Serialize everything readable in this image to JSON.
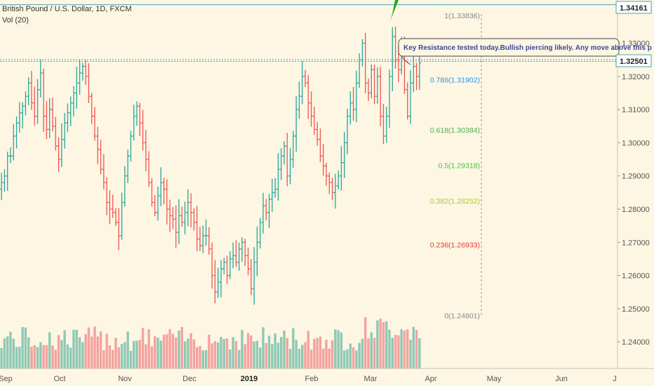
{
  "header": {
    "symbol_line": "British Pound / U.S. Dollar, 1D, FXCM",
    "volume_label": "Vol (20)"
  },
  "annotation": {
    "text": "Key Resistance tested today.Bullish piercing likely. Any move above this p"
  },
  "price_tags": {
    "upper": "1.34161",
    "current": "1.32501"
  },
  "colors": {
    "background": "#fdf6e3",
    "up": "#26a69a",
    "down": "#ef5350",
    "vol_up": "#8fc9b5",
    "vol_down": "#f4a3a0",
    "axis_text": "#555555",
    "price_line": "#4aa3b5"
  },
  "chart_data": {
    "type": "ohlc",
    "symbol": "GBP/USD",
    "timeframe": "1D",
    "ylim": [
      1.232,
      1.343
    ],
    "y_ticks": [
      "1.33000",
      "1.32000",
      "1.31000",
      "1.30000",
      "1.29000",
      "1.28000",
      "1.27000",
      "1.26000",
      "1.25000",
      "1.24000"
    ],
    "x_ticks": [
      "Sep",
      "Oct",
      "Nov",
      "Dec",
      "2019",
      "Feb",
      "Mar",
      "Apr",
      "May",
      "Jun",
      "J"
    ],
    "horizontal_levels": [
      1.34161,
      1.32501
    ],
    "fibonacci": [
      {
        "label": "1(1.33836)",
        "value": 1.33836,
        "color": "#888888"
      },
      {
        "label": "0.786(1.31902)",
        "value": 1.31902,
        "color": "#2196f3"
      },
      {
        "label": "0.618(1.30384)",
        "value": 1.30384,
        "color": "#4caf50"
      },
      {
        "label": "0.5(1.29318)",
        "value": 1.29318,
        "color": "#43c643"
      },
      {
        "label": "0.382(1.28252)",
        "value": 1.28252,
        "color": "#a8c93a"
      },
      {
        "label": "0.236(1.26933)",
        "value": 1.26933,
        "color": "#e53935"
      },
      {
        "label": "0(1.24801)",
        "value": 1.24801,
        "color": "#888888"
      }
    ],
    "close_path": [
      1.288,
      1.29,
      1.296,
      1.296,
      1.302,
      1.306,
      1.309,
      1.311,
      1.314,
      1.318,
      1.312,
      1.308,
      1.316,
      1.321,
      1.308,
      1.304,
      1.31,
      1.305,
      1.299,
      1.295,
      1.301,
      1.306,
      1.309,
      1.312,
      1.315,
      1.318,
      1.321,
      1.323,
      1.32,
      1.314,
      1.308,
      1.302,
      1.298,
      1.292,
      1.288,
      1.282,
      1.28,
      1.279,
      1.276,
      1.272,
      1.282,
      1.29,
      1.296,
      1.302,
      1.308,
      1.311,
      1.306,
      1.3,
      1.295,
      1.288,
      1.282,
      1.279,
      1.284,
      1.288,
      1.286,
      1.28,
      1.278,
      1.277,
      1.273,
      1.278,
      1.276,
      1.279,
      1.282,
      1.279,
      1.276,
      1.271,
      1.269,
      1.272,
      1.272,
      1.268,
      1.26,
      1.255,
      1.258,
      1.262,
      1.264,
      1.26,
      1.265,
      1.266,
      1.264,
      1.268,
      1.27,
      1.266,
      1.262,
      1.256,
      1.264,
      1.27,
      1.276,
      1.281,
      1.279,
      1.283,
      1.285,
      1.286,
      1.292,
      1.296,
      1.299,
      1.29,
      1.295,
      1.302,
      1.31,
      1.314,
      1.32,
      1.318,
      1.312,
      1.308,
      1.304,
      1.301,
      1.296,
      1.293,
      1.29,
      1.288,
      1.285,
      1.287,
      1.29,
      1.294,
      1.3,
      1.308,
      1.312,
      1.31,
      1.318,
      1.325,
      1.33,
      1.318,
      1.315,
      1.322,
      1.314,
      1.32,
      1.308,
      1.302,
      1.308,
      1.32,
      1.332,
      1.325,
      1.322,
      1.328,
      1.316,
      1.308,
      1.318,
      1.323,
      1.32,
      1.324
    ]
  }
}
